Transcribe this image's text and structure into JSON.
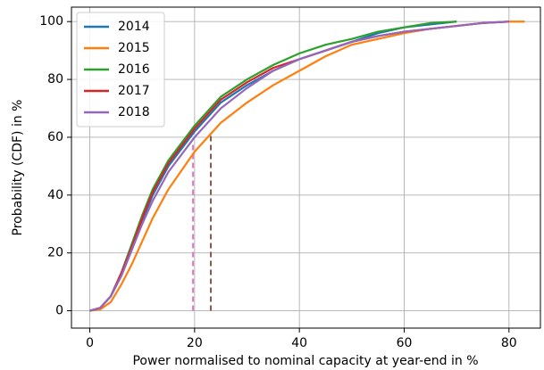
{
  "chart_data": {
    "type": "line",
    "xlabel": "Power normalised to nominal capacity at year-end in %",
    "ylabel": "Probability (CDF) in %",
    "x": [
      0,
      2,
      4,
      6,
      8,
      10,
      12,
      15,
      20,
      25,
      30,
      35,
      40,
      45,
      50,
      55,
      60,
      65,
      70,
      75,
      80,
      83
    ],
    "series": [
      {
        "name": "2014",
        "color": "#1f77b4",
        "values": [
          0,
          1,
          5,
          12,
          21,
          31,
          40,
          50,
          62,
          72,
          78,
          83,
          87,
          90,
          93,
          96,
          98,
          99,
          100,
          null,
          null,
          null
        ]
      },
      {
        "name": "2015",
        "color": "#ff7f0e",
        "values": [
          0,
          0.5,
          3,
          9,
          16,
          24,
          32,
          42,
          55,
          65,
          72,
          78,
          83,
          88,
          92,
          94,
          96,
          97.5,
          98.5,
          99.5,
          100,
          100
        ]
      },
      {
        "name": "2016",
        "color": "#2ca02c",
        "values": [
          0,
          1,
          5,
          13,
          23,
          33,
          42,
          52,
          64,
          74,
          80,
          85,
          89,
          92,
          94,
          96.5,
          98,
          99.5,
          100,
          null,
          null,
          null
        ]
      },
      {
        "name": "2017",
        "color": "#d62728",
        "values": [
          0,
          1,
          5,
          13,
          22,
          32,
          41,
          51,
          63,
          73,
          79,
          84,
          87,
          90,
          93,
          95,
          96.5,
          97.5,
          98.5,
          99.5,
          100,
          null
        ]
      },
      {
        "name": "2018",
        "color": "#9467bd",
        "values": [
          0,
          1,
          5,
          12,
          21,
          30,
          38,
          48,
          60,
          70,
          77,
          83,
          87,
          90,
          93,
          95,
          96.5,
          97.5,
          98.5,
          99.5,
          100,
          null
        ]
      }
    ],
    "vlines": [
      {
        "x": 19.7,
        "y": [
          0,
          58
        ],
        "color": "#e377c2"
      },
      {
        "x": 23.1,
        "y": [
          0,
          61
        ],
        "color": "#8c564b"
      }
    ],
    "xlim": [
      -3.5,
      86
    ],
    "ylim": [
      -6,
      105
    ],
    "xticks": [
      0,
      20,
      40,
      60,
      80
    ],
    "yticks": [
      0,
      20,
      40,
      60,
      80,
      100
    ],
    "grid": true,
    "legend": "upper left"
  }
}
